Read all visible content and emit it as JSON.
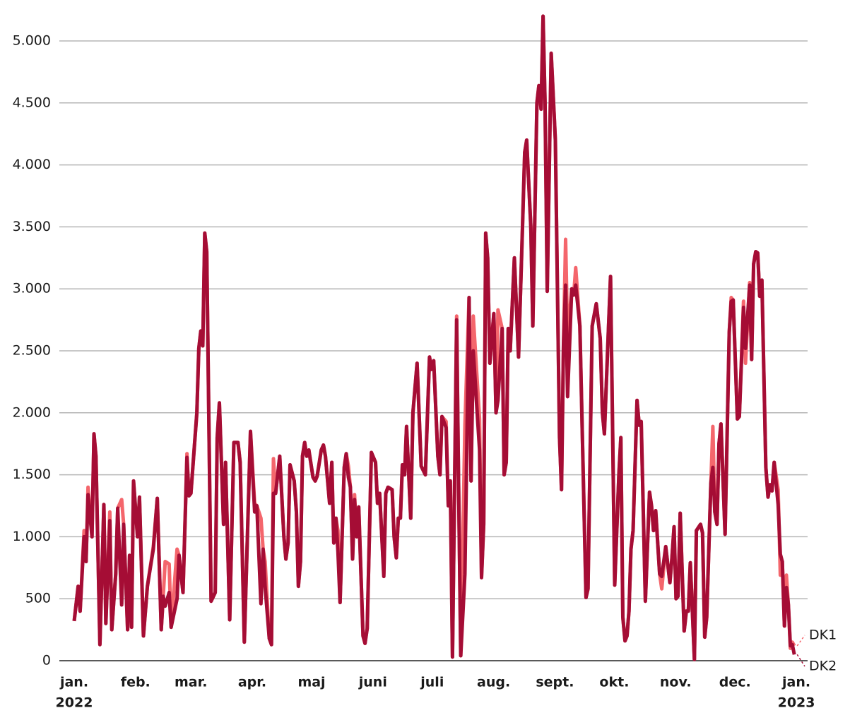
{
  "chart_data": {
    "type": "line",
    "x": [
      0,
      2,
      3,
      5,
      6,
      7,
      9,
      10,
      11,
      13,
      15,
      16,
      18,
      19,
      21,
      22,
      24,
      25,
      27,
      28,
      29,
      30,
      32,
      33,
      35,
      37,
      40,
      42,
      44,
      45,
      46,
      48,
      49,
      52,
      53,
      55,
      57,
      58,
      59,
      62,
      63,
      64,
      65,
      66,
      67,
      69.2,
      71.3,
      72.3,
      73.4,
      75.5,
      76.5,
      78.6,
      80.7,
      82.8,
      83.9,
      86,
      89.1,
      91.2,
      92.3,
      94.4,
      95.5,
      96.5,
      98.6,
      99.7,
      100.7,
      101.8,
      103.9,
      106,
      107,
      108.1,
      109.1,
      111.2,
      112.3,
      113.3,
      114.4,
      115.4,
      116.5,
      117.5,
      118.6,
      120.7,
      121.8,
      122.8,
      124.9,
      126,
      127,
      129.1,
      130.2,
      131.2,
      132.3,
      133.3,
      134.4,
      136.5,
      137.5,
      138.6,
      139.6,
      140.7,
      141.7,
      142.8,
      143.8,
      146,
      147,
      148.1,
      150.2,
      152.3,
      153.3,
      154.4,
      156.5,
      157.5,
      158.6,
      160.7,
      161.7,
      162.8,
      163.8,
      164.9,
      165.9,
      167,
      168,
      170.1,
      171.2,
      173.3,
      175.4,
      177.5,
      179.6,
      180.6,
      181.7,
      183.8,
      184.9,
      185.9,
      188,
      189.1,
      190.1,
      191.2,
      193.3,
      194.3,
      195.4,
      197.5,
      199.6,
      200.6,
      201.7,
      204.9,
      205.9,
      207,
      208,
      209,
      210.1,
      212.1,
      213.2,
      214.2,
      216.3,
      217.3,
      218.4,
      219.4,
      220.4,
      222.5,
      224.6,
      226.6,
      227.7,
      228.7,
      230.8,
      231.8,
      233.9,
      234.9,
      236,
      237,
      238,
      239.1,
      241.1,
      243.2,
      245.3,
      246.3,
      247.3,
      248.4,
      249.4,
      251.5,
      252.5,
      253.5,
      255.6,
      258.7,
      259.7,
      261.8,
      263.9,
      265.9,
      267,
      268,
      270.1,
      271.1,
      273.2,
      275.3,
      276.3,
      277.3,
      278.4,
      279.4,
      280.4,
      281.4,
      282.5,
      284.5,
      285.6,
      286.6,
      288.7,
      290.8,
      291.8,
      292.8,
      293.9,
      295.9,
      297,
      299,
      301.1,
      302.1,
      303.2,
      304.2,
      305.2,
      306.3,
      308.3,
      309.4,
      310.4,
      311.4,
      313.5,
      314.5,
      316.6,
      317.6,
      318.7,
      319.7,
      321.8,
      322.8,
      323.8,
      324.9,
      325.9,
      326.9,
      329,
      331.1,
      332.1,
      333.1,
      335.2,
      336.2,
      338.3,
      339.3,
      341.4,
      342.4,
      343.4,
      344.5,
      345.5,
      346.5,
      347.6,
      349.6,
      350.7,
      351.7,
      352.7,
      353.8,
      355.8,
      356.9,
      357.9,
      359,
      360,
      361,
      362,
      363,
      364
    ],
    "series": [
      {
        "name": "DK1",
        "color": "#f4666c",
        "values": [
          320,
          600,
          400,
          1050,
          800,
          1400,
          1000,
          1830,
          1650,
          130,
          1260,
          300,
          1200,
          250,
          700,
          1230,
          1300,
          1100,
          250,
          850,
          270,
          1450,
          1000,
          1320,
          200,
          600,
          920,
          1310,
          250,
          520,
          800,
          780,
          270,
          900,
          850,
          550,
          1670,
          1330,
          1350,
          2000,
          2520,
          2660,
          2540,
          3450,
          3300,
          480,
          550,
          1800,
          2080,
          1100,
          1600,
          330,
          1760,
          1760,
          1600,
          150,
          1850,
          1270,
          1250,
          1150,
          900,
          800,
          180,
          130,
          1630,
          1350,
          1650,
          1000,
          820,
          950,
          1580,
          1450,
          1200,
          600,
          800,
          1650,
          1760,
          1650,
          1700,
          1480,
          1450,
          1490,
          1700,
          1740,
          1650,
          1270,
          1600,
          950,
          1150,
          1050,
          470,
          1560,
          1670,
          1570,
          1400,
          820,
          1340,
          1000,
          1240,
          200,
          140,
          260,
          1680,
          1600,
          1270,
          1350,
          700,
          1350,
          1400,
          1380,
          1000,
          830,
          1150,
          1150,
          1580,
          1500,
          1890,
          1150,
          2000,
          2400,
          1570,
          1500,
          2450,
          2350,
          2420,
          1650,
          1500,
          1970,
          1930,
          1250,
          1450,
          30,
          2780,
          1400,
          40,
          1900,
          2930,
          1450,
          2780,
          1950,
          670,
          1100,
          3450,
          3250,
          2400,
          2800,
          2000,
          2830,
          2680,
          1500,
          1600,
          2680,
          2500,
          3250,
          2450,
          3500,
          4100,
          4200,
          3500,
          2700,
          4500,
          4640,
          4450,
          5200,
          4500,
          2980,
          4900,
          4200,
          1800,
          1380,
          2550,
          3400,
          2600,
          3000,
          2950,
          3170,
          2700,
          510,
          580,
          2700,
          2880,
          2600,
          2000,
          1830,
          2700,
          3100,
          610,
          1500,
          1800,
          350,
          160,
          200,
          400,
          900,
          1050,
          2100,
          1900,
          1930,
          480,
          1360,
          1250,
          1050,
          1210,
          700,
          580,
          920,
          630,
          820,
          1080,
          500,
          520,
          1190,
          240,
          400,
          400,
          790,
          10,
          1050,
          1100,
          1030,
          190,
          350,
          1430,
          1890,
          1200,
          1100,
          1750,
          1910,
          1020,
          2650,
          2930,
          2910,
          1950,
          1970,
          2900,
          2400,
          3050,
          2430,
          3200,
          3300,
          3290,
          2940,
          3070,
          1560,
          1320,
          1420,
          1370,
          1600,
          1380,
          690,
          800,
          280,
          690,
          450,
          100,
          150,
          120
        ]
      },
      {
        "name": "DK2",
        "color": "#a50d35",
        "values": [
          320,
          600,
          400,
          1000,
          800,
          1340,
          1000,
          1830,
          1650,
          130,
          1260,
          300,
          1130,
          250,
          700,
          1230,
          450,
          1100,
          250,
          850,
          270,
          1450,
          1000,
          1320,
          200,
          600,
          900,
          1310,
          250,
          520,
          440,
          550,
          270,
          500,
          850,
          550,
          1640,
          1330,
          1350,
          2000,
          2520,
          2660,
          2540,
          3450,
          3300,
          480,
          550,
          1800,
          2080,
          1100,
          1600,
          330,
          1760,
          1760,
          1600,
          150,
          1850,
          1200,
          1250,
          460,
          900,
          600,
          180,
          130,
          1350,
          1350,
          1650,
          1000,
          820,
          950,
          1580,
          1450,
          1200,
          600,
          800,
          1650,
          1760,
          1650,
          1700,
          1480,
          1450,
          1490,
          1700,
          1740,
          1650,
          1270,
          1600,
          950,
          1150,
          880,
          470,
          1560,
          1670,
          1480,
          1400,
          820,
          1300,
          1000,
          1240,
          200,
          140,
          260,
          1680,
          1600,
          1270,
          1350,
          680,
          1350,
          1400,
          1380,
          1000,
          830,
          1150,
          1150,
          1580,
          1500,
          1890,
          1150,
          2000,
          2400,
          1570,
          1500,
          2450,
          2350,
          2420,
          1650,
          1500,
          1970,
          1880,
          1250,
          1450,
          30,
          2750,
          1400,
          40,
          700,
          2930,
          1450,
          2500,
          1700,
          670,
          1100,
          3450,
          3250,
          2400,
          2800,
          2000,
          2100,
          2680,
          1500,
          1600,
          2680,
          2500,
          3250,
          2450,
          3500,
          4100,
          4200,
          3500,
          2700,
          4500,
          4640,
          4450,
          5200,
          4500,
          2980,
          4900,
          4200,
          1800,
          1380,
          2550,
          3030,
          2130,
          3000,
          2950,
          3030,
          2700,
          510,
          580,
          2700,
          2880,
          2600,
          2000,
          1830,
          2700,
          3100,
          610,
          1500,
          1800,
          350,
          160,
          200,
          400,
          900,
          1050,
          2100,
          1900,
          1930,
          480,
          1360,
          1250,
          1050,
          1210,
          700,
          680,
          920,
          630,
          820,
          1080,
          500,
          520,
          1190,
          240,
          400,
          400,
          790,
          10,
          1050,
          1100,
          1030,
          190,
          350,
          1430,
          1560,
          1200,
          1100,
          1750,
          1910,
          1020,
          2650,
          2900,
          2910,
          1950,
          1970,
          2850,
          2520,
          3030,
          2430,
          3200,
          3300,
          3290,
          2940,
          3070,
          1560,
          1320,
          1420,
          1370,
          1600,
          1260,
          860,
          800,
          280,
          590,
          450,
          120,
          130,
          50
        ]
      }
    ],
    "xlim": [
      -7.5,
      370.7
    ],
    "xticks": [
      {
        "value": 0,
        "label": "jan."
      },
      {
        "value": 31,
        "label": "feb."
      },
      {
        "value": 59,
        "label": "mar."
      },
      {
        "value": 90,
        "label": "apr."
      },
      {
        "value": 120,
        "label": "maj"
      },
      {
        "value": 151,
        "label": "juni"
      },
      {
        "value": 181,
        "label": "juli"
      },
      {
        "value": 212,
        "label": "aug."
      },
      {
        "value": 243,
        "label": "sept."
      },
      {
        "value": 273,
        "label": "okt."
      },
      {
        "value": 304,
        "label": "nov."
      },
      {
        "value": 334,
        "label": "dec."
      },
      {
        "value": 365,
        "label": "jan."
      }
    ],
    "xtick_years": [
      {
        "value": 0,
        "label": "2022"
      },
      {
        "value": 365,
        "label": "2023"
      }
    ],
    "ylim": [
      0,
      5230
    ],
    "yticks": [
      0,
      500,
      {
        "value": 1000,
        "label": "1.000"
      },
      {
        "value": 1500,
        "label": "1.500"
      },
      {
        "value": 2000,
        "label": "2.000"
      },
      {
        "value": 2500,
        "label": "2.500"
      },
      {
        "value": 3000,
        "label": "3.000"
      },
      {
        "value": 3500,
        "label": "3.500"
      },
      {
        "value": 4000,
        "label": "4.000"
      },
      {
        "value": 4500,
        "label": "4.500"
      },
      {
        "value": 5000,
        "label": "5.000"
      }
    ],
    "grid": true,
    "legend": "line-end"
  }
}
